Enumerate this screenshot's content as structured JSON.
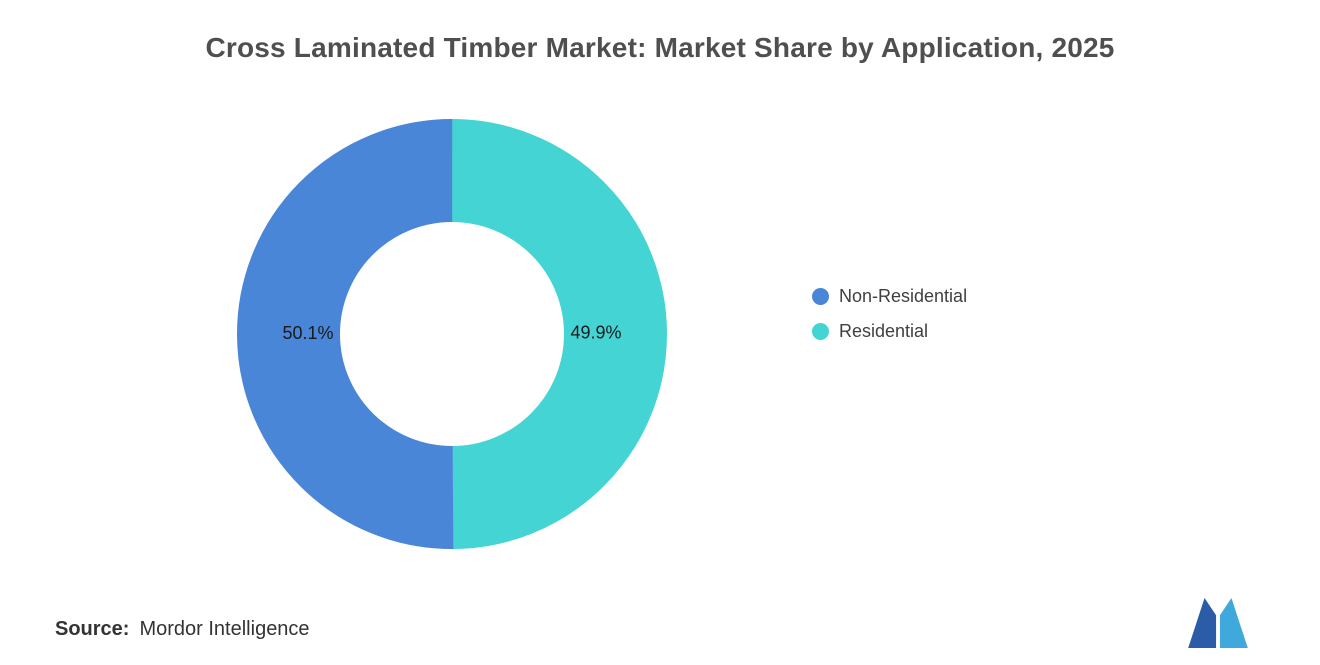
{
  "header": {
    "title": "Cross Laminated Timber Market: Market Share by Application, 2025"
  },
  "chart_data": {
    "type": "pie",
    "donut": true,
    "title": "Cross Laminated Timber Market: Market Share by Application, 2025",
    "legend_position": "right",
    "label_color": "#1a1a1a",
    "series": [
      {
        "name": "Non-Residential",
        "value": 50.1,
        "label": "50.1%",
        "color": "#4A86D8"
      },
      {
        "name": "Residential",
        "value": 49.9,
        "label": "49.9%",
        "color": "#45D4D4"
      }
    ]
  },
  "source": {
    "label": "Source:",
    "value": "Mordor Intelligence"
  },
  "logo": {
    "name": "mordor-intelligence-logo",
    "colors": {
      "dark": "#2B5CA8",
      "light": "#3FA9DC"
    }
  }
}
